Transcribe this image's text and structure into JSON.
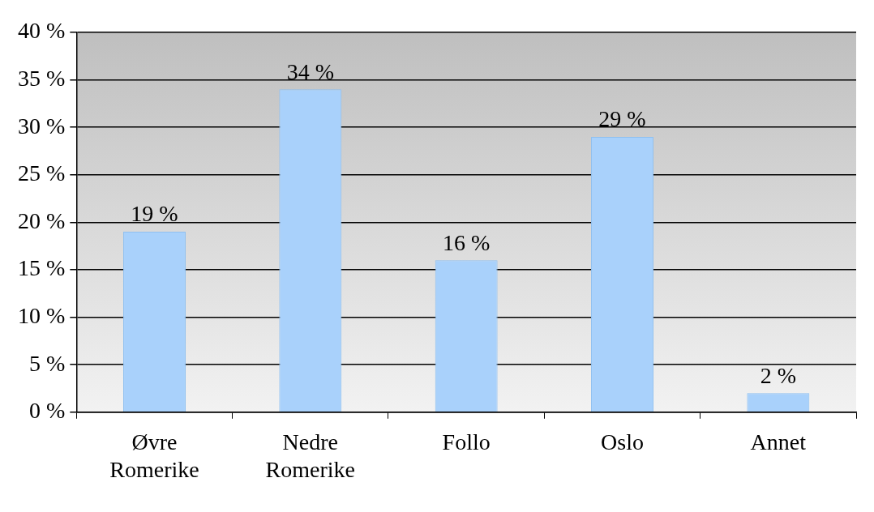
{
  "chart_data": {
    "type": "bar",
    "categories": [
      "Øvre Romerike",
      "Nedre Romerike",
      "Follo",
      "Oslo",
      "Annet"
    ],
    "values": [
      19,
      34,
      16,
      29,
      2
    ],
    "value_labels": [
      "19 %",
      "34 %",
      "16 %",
      "29 %",
      "2 %"
    ],
    "color": "#a9d1fb",
    "ylim": [
      0,
      40
    ],
    "yticks": [
      {
        "value": 0,
        "label": "0 %"
      },
      {
        "value": 5,
        "label": "5 %"
      },
      {
        "value": 10,
        "label": "10 %"
      },
      {
        "value": 15,
        "label": "15 %"
      },
      {
        "value": 20,
        "label": "20 %"
      },
      {
        "value": 25,
        "label": "25 %"
      },
      {
        "value": 30,
        "label": "30 %"
      },
      {
        "value": 35,
        "label": "35 %"
      },
      {
        "value": 40,
        "label": "40 %"
      }
    ],
    "grid": "y",
    "legend": false
  }
}
